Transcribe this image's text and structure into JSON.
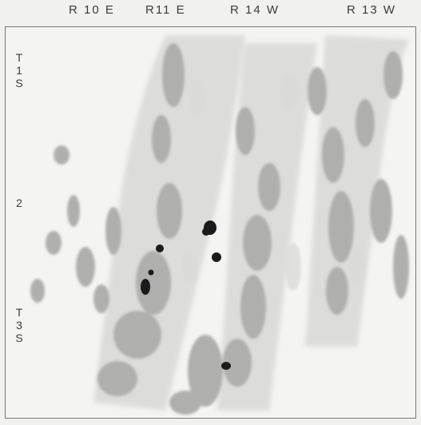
{
  "ranges": {
    "r10e": "R 10 E",
    "r11e": "R11 E",
    "r14w": "R 14 W",
    "r13w": "R 13 W"
  },
  "townships": {
    "t1s": [
      "T",
      "1",
      "S"
    ],
    "t2": "2",
    "t3s": [
      "T",
      "3",
      "S"
    ]
  },
  "map": {
    "colors": {
      "background": "#f4f4f2",
      "relief_shade": "#b9b9b7",
      "relief_light": "#d4d4d2",
      "marker": "#1b1b1b",
      "border": "#777777"
    },
    "marker_count": 7
  }
}
